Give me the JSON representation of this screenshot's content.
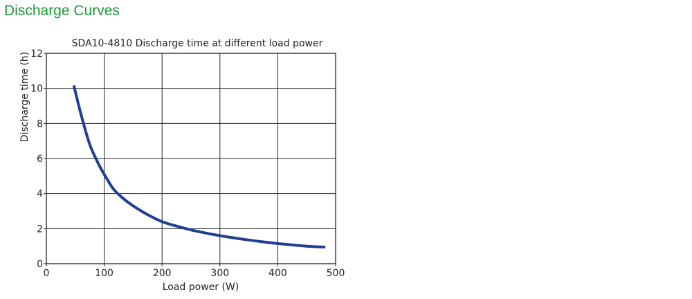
{
  "page": {
    "heading": "Discharge Curves"
  },
  "colors": {
    "heading": "#1a9a3a",
    "curve": "#1f3f93",
    "grid": "#222222",
    "text": "#222222"
  },
  "chart_data": {
    "type": "line",
    "title": "SDA10-4810 Discharge time at different load power",
    "xlabel": "Load power (W)",
    "ylabel": "Discharge time (h)",
    "xlim": [
      0,
      500
    ],
    "ylim": [
      0,
      12
    ],
    "xticks": [
      0,
      100,
      200,
      300,
      400,
      500
    ],
    "yticks": [
      0,
      2,
      4,
      6,
      8,
      10,
      12
    ],
    "grid": true,
    "series": [
      {
        "x": [
          48,
          60,
          75,
          90,
          100,
          115,
          130,
          150,
          175,
          200,
          230,
          260,
          300,
          350,
          400,
          450,
          480
        ],
        "y": [
          10.1,
          8.5,
          6.8,
          5.7,
          5.1,
          4.3,
          3.8,
          3.3,
          2.8,
          2.4,
          2.1,
          1.85,
          1.6,
          1.35,
          1.15,
          1.0,
          0.95
        ]
      }
    ]
  }
}
